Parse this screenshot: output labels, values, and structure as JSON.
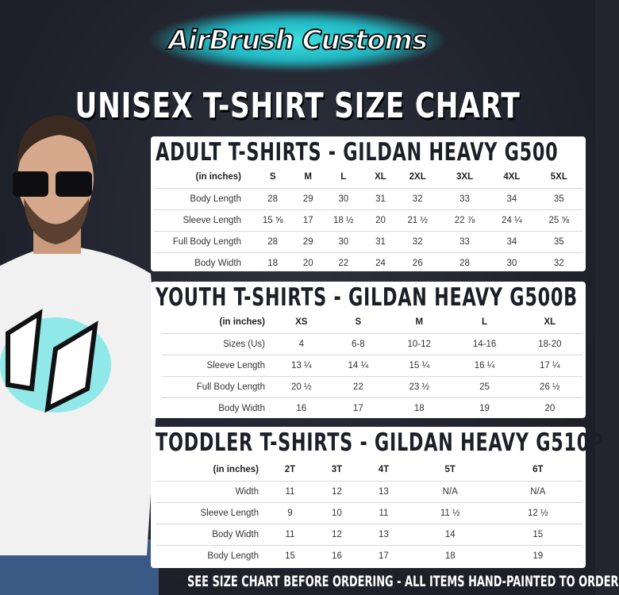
{
  "logo": {
    "text": "AirBrush Customs",
    "accent": "#2fd0d6"
  },
  "title": "UNISEX T-SHIRT SIZE CHART",
  "adult": {
    "title": "ADULT T-SHIRTS - GILDAN HEAVY G500",
    "header": [
      "(in inches)",
      "S",
      "M",
      "L",
      "XL",
      "2XL",
      "3XL",
      "4XL",
      "5XL"
    ],
    "rows": [
      [
        "Body Length",
        "28",
        "29",
        "30",
        "31",
        "32",
        "33",
        "34",
        "35"
      ],
      [
        "Sleeve Length",
        "15 ⅝",
        "17",
        "18 ½",
        "20",
        "21 ½",
        "22 ⅞",
        "24 ¼",
        "25 ⅝"
      ],
      [
        "Full Body Length",
        "28",
        "29",
        "30",
        "31",
        "32",
        "33",
        "34",
        "35"
      ],
      [
        "Body Width",
        "18",
        "20",
        "22",
        "24",
        "26",
        "28",
        "30",
        "32"
      ]
    ]
  },
  "youth": {
    "title": "YOUTH T-SHIRTS - GILDAN HEAVY G500B",
    "header": [
      "(in inches)",
      "XS",
      "S",
      "M",
      "L",
      "XL"
    ],
    "rows": [
      [
        "Sizes (Us)",
        "4",
        "6-8",
        "10-12",
        "14-16",
        "18-20"
      ],
      [
        "Sleeve Length",
        "13 ¼",
        "14 ¼",
        "15 ¼",
        "16 ¼",
        "17 ¼"
      ],
      [
        "Full Body Length",
        "20 ½",
        "22",
        "23 ½",
        "25",
        "26 ½"
      ],
      [
        "Body Width",
        "16",
        "17",
        "18",
        "19",
        "20"
      ]
    ]
  },
  "toddler": {
    "title": "TODDLER T-SHIRTS - GILDAN HEAVY G510P",
    "header": [
      "(in inches)",
      "2T",
      "3T",
      "4T",
      "5T",
      "6T"
    ],
    "rows": [
      [
        "Width",
        "11",
        "12",
        "13",
        "N/A",
        "N/A"
      ],
      [
        "Sleeve Length",
        "9",
        "10",
        "11",
        "11 ½",
        "12 ½"
      ],
      [
        "Body Width",
        "11",
        "12",
        "13",
        "14",
        "15"
      ],
      [
        "Body Length",
        "15",
        "16",
        "17",
        "18",
        "19"
      ]
    ]
  },
  "footer": "SEE SIZE CHART BEFORE ORDERING - ALL ITEMS HAND-PAINTED TO ORDER"
}
